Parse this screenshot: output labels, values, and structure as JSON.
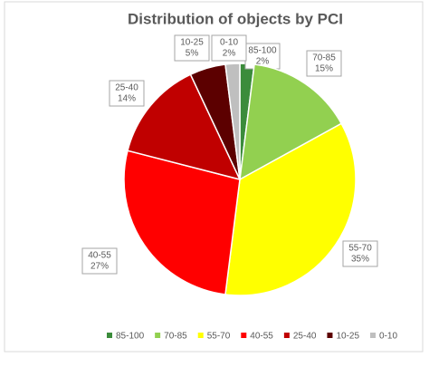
{
  "chart_data": {
    "type": "pie",
    "title": "Distribution of objects by PCI",
    "categories": [
      "85-100",
      "70-85",
      "55-70",
      "40-55",
      "25-40",
      "10-25",
      "0-10"
    ],
    "values": [
      2,
      15,
      35,
      27,
      14,
      5,
      2
    ],
    "value_labels": [
      "2%",
      "15%",
      "35%",
      "27%",
      "14%",
      "5%",
      "2%"
    ],
    "colors": [
      "#3b8c3b",
      "#92d050",
      "#ffff00",
      "#ff0000",
      "#c00000",
      "#5c0000",
      "#bfbfbf"
    ],
    "legend": "bottom"
  }
}
